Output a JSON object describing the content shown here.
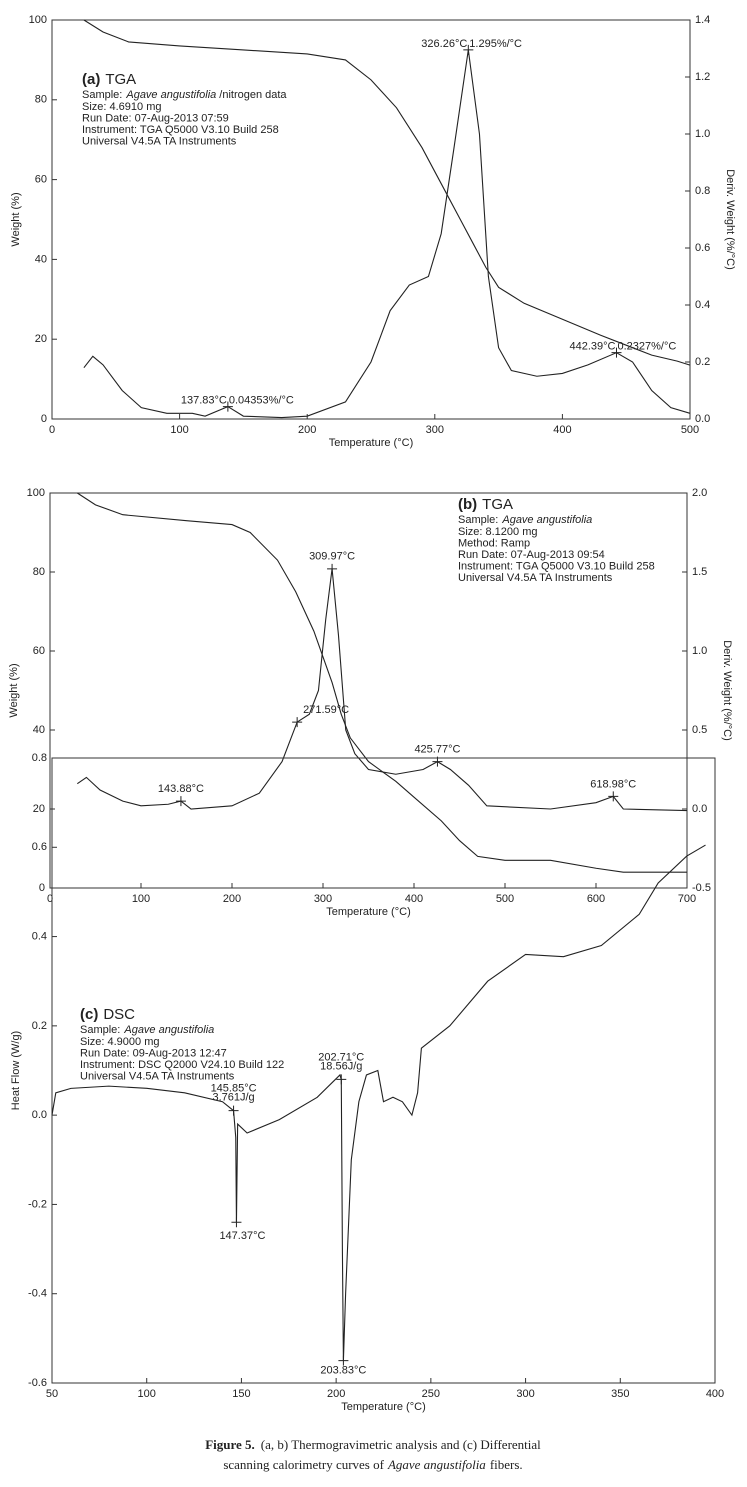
{
  "chart_data": [
    {
      "type": "line",
      "panel": "(a)",
      "title": "TGA",
      "sample_label": "Sample:",
      "sample": "Agave angustifolia",
      "sample_note": "/nitrogen data",
      "info": [
        "Size: 4.6910 mg",
        "Run Date: 07-Aug-2013 07:59",
        "Instrument: TGA Q5000 V3.10 Build 258",
        "Universal V4.5A TA Instruments"
      ],
      "xlabel": "Temperature (°C)",
      "ylabel": "Weight (%)",
      "y2label": "Deriv. Weight (%/°C)",
      "xlim": [
        0,
        500
      ],
      "xticks": [
        0,
        100,
        200,
        300,
        400,
        500
      ],
      "ylim": [
        0,
        100
      ],
      "yticks": [
        0,
        20,
        40,
        60,
        80,
        100
      ],
      "y2lim": [
        0,
        1.4
      ],
      "y2ticks": [
        {
          "value": 0,
          "label": "0.0"
        },
        0.2,
        0.4,
        0.6,
        0.8,
        {
          "value": 1,
          "label": "1.0"
        },
        1.2,
        1.4
      ],
      "series": [
        {
          "color": "#222222",
          "x": [
            25,
            40,
            60,
            100,
            150,
            200,
            230,
            250,
            270,
            290,
            310,
            320,
            330,
            340,
            350,
            370,
            400,
            430,
            450,
            470,
            490,
            500
          ],
          "values": [
            100,
            97,
            94.5,
            93.5,
            92.5,
            91.5,
            90,
            85,
            78,
            68,
            56,
            50,
            44,
            38,
            33,
            29,
            25,
            21,
            18.5,
            16,
            14.5,
            13.5
          ]
        },
        {
          "axis": "y2",
          "color": "#222222",
          "x": [
            25,
            32,
            40,
            55,
            70,
            90,
            110,
            120,
            137.83,
            150,
            180,
            200,
            230,
            250,
            265,
            280,
            295,
            305,
            315,
            326.26,
            335,
            342,
            350,
            360,
            380,
            400,
            420,
            442.39,
            455,
            470,
            485,
            500
          ],
          "values": [
            0.18,
            0.22,
            0.19,
            0.1,
            0.04,
            0.02,
            0.02,
            0.01,
            0.04353,
            0.01,
            0.005,
            0.01,
            0.06,
            0.2,
            0.38,
            0.47,
            0.5,
            0.65,
            0.95,
            1.295,
            1.0,
            0.5,
            0.25,
            0.17,
            0.15,
            0.16,
            0.19,
            0.2327,
            0.2,
            0.1,
            0.04,
            0.02
          ]
        }
      ],
      "peaks": [
        {
          "x": 326.26,
          "y": 1.295,
          "labels": [
            "326.26°C",
            "1.295%/°C"
          ]
        },
        {
          "x": 137.83,
          "y": 0.04353,
          "labels": [
            "137.83°C",
            "0.04353%/°C"
          ]
        },
        {
          "x": 442.39,
          "y": 0.2327,
          "labels": [
            "442.39°C",
            "0.2327%/°C"
          ]
        }
      ]
    },
    {
      "type": "line",
      "panel": "(b)",
      "title": "TGA",
      "sample_label": "Sample:",
      "sample": "Agave angustifolia",
      "info": [
        "Size: 8.1200 mg",
        "Method: Ramp",
        "Run Date: 07-Aug-2013 09:54",
        "Instrument: TGA Q5000 V3.10 Build 258",
        "Universal V4.5A TA Instruments"
      ],
      "xlabel": "Temperature (°C)",
      "ylabel": "Weight (%)",
      "y2label": "Deriv. Weight (%/°C)",
      "xlim": [
        0,
        700
      ],
      "xticks": [
        0,
        100,
        200,
        300,
        400,
        500,
        600,
        700
      ],
      "ylim": [
        0,
        100
      ],
      "yticks": [
        0,
        20,
        40,
        60,
        80,
        100
      ],
      "y2lim": [
        -0.5,
        2.0
      ],
      "y2ticks": [
        -0.5,
        {
          "value": 0,
          "label": "0.0"
        },
        0.5,
        {
          "value": 1,
          "label": "1.0"
        },
        1.5,
        {
          "value": 2,
          "label": "2.0"
        }
      ],
      "series": [
        {
          "color": "#222222",
          "x": [
            30,
            50,
            80,
            150,
            200,
            220,
            250,
            270,
            290,
            310,
            320,
            330,
            350,
            380,
            400,
            430,
            450,
            470,
            500,
            550,
            600,
            630,
            700
          ],
          "values": [
            100,
            97,
            94.5,
            93,
            92,
            90,
            83,
            75,
            65,
            52,
            44,
            38,
            32,
            27,
            23,
            17,
            12,
            8,
            7,
            7,
            5,
            4,
            4
          ]
        },
        {
          "axis": "y2",
          "color": "#222222",
          "x": [
            30,
            40,
            55,
            80,
            100,
            130,
            143.88,
            155,
            200,
            230,
            255,
            271.59,
            285,
            295,
            303,
            309.97,
            317,
            325,
            335,
            350,
            380,
            410,
            425.77,
            440,
            460,
            480,
            550,
            600,
            618.98,
            630,
            700
          ],
          "values": [
            0.16,
            0.2,
            0.12,
            0.05,
            0.02,
            0.03,
            0.05,
            0.0,
            0.02,
            0.1,
            0.3,
            0.55,
            0.6,
            0.75,
            1.2,
            1.52,
            1.1,
            0.5,
            0.35,
            0.25,
            0.22,
            0.25,
            0.3,
            0.25,
            0.15,
            0.02,
            0.0,
            0.04,
            0.08,
            0.0,
            -0.01
          ]
        }
      ],
      "peaks": [
        {
          "x": 309.97,
          "y": 1.52,
          "labels": [
            "309.97°C"
          ]
        },
        {
          "x": 271.59,
          "y": 0.55,
          "labels": [
            "271.59°C"
          ]
        },
        {
          "x": 143.88,
          "y": 0.05,
          "labels": [
            "143.88°C"
          ]
        },
        {
          "x": 425.77,
          "y": 0.3,
          "labels": [
            "425.77°C"
          ]
        },
        {
          "x": 618.98,
          "y": 0.08,
          "labels": [
            "618.98°C"
          ]
        }
      ]
    },
    {
      "type": "line",
      "panel": "(c)",
      "title": "DSC",
      "sample_label": "Sample:",
      "sample": "Agave angustifolia",
      "info": [
        "Size: 4.9000 mg",
        "Run Date: 09-Aug-2013 12:47",
        "Instrument: DSC Q2000 V24.10 Build 122",
        "Universal V4.5A TA Instruments"
      ],
      "xlabel": "Temperature (°C)",
      "ylabel": "Heat Flow (W/g)",
      "xlim": [
        50,
        400
      ],
      "xticks": [
        50,
        100,
        150,
        200,
        250,
        300,
        350,
        400
      ],
      "ylim": [
        -0.6,
        0.8
      ],
      "yticks": [
        -0.6,
        -0.4,
        -0.2,
        {
          "value": 0,
          "label": "0.0"
        },
        0.2,
        0.4,
        0.6,
        0.8
      ],
      "series": [
        {
          "color": "#222222",
          "x": [
            50,
            52,
            60,
            80,
            100,
            120,
            140,
            145.85,
            147,
            147.37,
            148,
            153,
            170,
            190,
            202,
            202.71,
            203.3,
            203.83,
            205,
            208,
            212,
            216,
            222,
            225,
            230,
            235,
            240,
            243,
            245,
            260,
            280,
            300,
            320,
            340,
            360,
            370,
            385,
            395
          ],
          "values": [
            0.0,
            0.05,
            0.06,
            0.065,
            0.06,
            0.05,
            0.03,
            0.01,
            -0.05,
            -0.24,
            -0.02,
            -0.04,
            -0.01,
            0.04,
            0.09,
            0.08,
            -0.3,
            -0.55,
            -0.4,
            -0.1,
            0.03,
            0.09,
            0.1,
            0.03,
            0.04,
            0.03,
            0.0,
            0.05,
            0.15,
            0.2,
            0.3,
            0.36,
            0.355,
            0.38,
            0.45,
            0.52,
            0.58,
            0.605
          ]
        }
      ],
      "peaks": [
        {
          "x": 145.85,
          "y": 0.01,
          "labels": [
            "145.85°C",
            "3.761J/g"
          ]
        },
        {
          "x": 147.37,
          "y": -0.24,
          "labels": [
            "147.37°C"
          ]
        },
        {
          "x": 202.71,
          "y": 0.08,
          "labels": [
            "202.71°C",
            "18.56J/g"
          ]
        },
        {
          "x": 203.83,
          "y": -0.55,
          "labels": [
            "203.83°C"
          ]
        }
      ]
    }
  ],
  "caption": {
    "label": "Figure 5.",
    "line1": "(a, b) Thermogravimetric analysis and (c) Differential",
    "line2": "scanning calorimetry curves of",
    "species": "Agave angustifolia",
    "end": "fibers."
  }
}
